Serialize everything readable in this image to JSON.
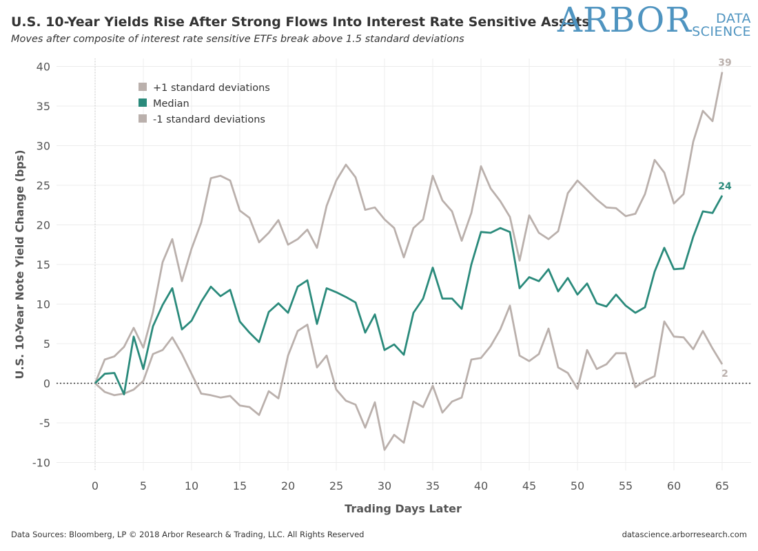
{
  "header": {
    "title": "U.S. 10-Year Yields Rise After Strong Flows Into Interest Rate Sensitive Assets",
    "subtitle": "Moves after composite of interest rate sensitive ETFs break above 1.5 standard deviations"
  },
  "logo": {
    "main": "ARBOR",
    "sub1": "DATA",
    "sub2": "SCIENCE",
    "color": "#4f94c0"
  },
  "footer": {
    "sources": "Data Sources: Bloomberg, LP © 2018 Arbor Research & Trading, LLC. All Rights Reserved",
    "url": "datascience.arborresearch.com"
  },
  "chart_data": {
    "type": "line",
    "xlabel": "Trading Days Later",
    "ylabel": "U.S. 10-Year Note Yield Change (bps)",
    "xlim": [
      -4,
      68
    ],
    "ylim": [
      -11,
      41
    ],
    "x_ticks": [
      0,
      5,
      10,
      15,
      20,
      25,
      30,
      35,
      40,
      45,
      50,
      55,
      60,
      65
    ],
    "y_ticks": [
      -10,
      -5,
      0,
      5,
      10,
      15,
      20,
      25,
      30,
      35,
      40
    ],
    "grid": true,
    "legend_position": "top-left",
    "reference_line": {
      "y": 0,
      "style": "dotted"
    },
    "x": [
      0,
      1,
      2,
      3,
      4,
      5,
      6,
      7,
      8,
      9,
      10,
      11,
      12,
      13,
      14,
      15,
      16,
      17,
      18,
      19,
      20,
      21,
      22,
      23,
      24,
      25,
      26,
      27,
      28,
      29,
      30,
      31,
      32,
      33,
      34,
      35,
      36,
      37,
      38,
      39,
      40,
      41,
      42,
      43,
      44,
      45,
      46,
      47,
      48,
      49,
      50,
      51,
      52,
      53,
      54,
      55,
      56,
      57,
      58,
      59,
      60,
      61,
      62,
      63,
      64,
      65
    ],
    "series": [
      {
        "name": "+1 standard deviations",
        "color": "#bab0ac",
        "end_label": "39",
        "values": [
          0,
          3.0,
          3.4,
          4.6,
          7.0,
          4.5,
          9.0,
          15.3,
          18.2,
          12.9,
          17.0,
          20.3,
          25.9,
          26.2,
          25.6,
          21.8,
          20.9,
          17.8,
          19.0,
          20.6,
          17.5,
          18.2,
          19.4,
          17.1,
          22.4,
          25.6,
          27.6,
          26.0,
          21.9,
          22.2,
          20.7,
          19.6,
          15.9,
          19.6,
          20.7,
          26.2,
          23.1,
          21.7,
          18.0,
          21.5,
          27.4,
          24.6,
          23.0,
          21.0,
          15.5,
          21.2,
          19.0,
          18.2,
          19.2,
          24.0,
          25.6,
          24.4,
          23.2,
          22.2,
          22.1,
          21.1,
          21.4,
          23.9,
          28.2,
          26.6,
          22.7,
          23.9,
          30.5,
          34.4,
          33.1,
          39.3
        ]
      },
      {
        "name": "Median",
        "color": "#2a8a7b",
        "end_label": "24",
        "values": [
          0,
          1.2,
          1.3,
          -1.4,
          5.9,
          1.8,
          7.2,
          9.9,
          12.0,
          6.8,
          7.9,
          10.3,
          12.2,
          11.0,
          11.8,
          7.8,
          6.4,
          5.2,
          9.0,
          10.1,
          8.9,
          12.2,
          13.0,
          7.5,
          12.0,
          11.5,
          10.9,
          10.2,
          6.4,
          8.7,
          4.2,
          4.9,
          3.6,
          8.9,
          10.7,
          14.6,
          10.7,
          10.7,
          9.4,
          15.0,
          19.1,
          19.0,
          19.6,
          19.1,
          12.0,
          13.4,
          12.9,
          14.4,
          11.6,
          13.3,
          11.2,
          12.6,
          10.1,
          9.7,
          11.2,
          9.8,
          8.9,
          9.6,
          14.1,
          17.1,
          14.4,
          14.5,
          18.5,
          21.7,
          21.5,
          23.7
        ]
      },
      {
        "name": "-1 standard deviations",
        "color": "#bab0ac",
        "end_label": "2",
        "values": [
          0,
          -1.1,
          -1.5,
          -1.3,
          -0.8,
          0.3,
          3.7,
          4.2,
          5.8,
          3.7,
          1.2,
          -1.3,
          -1.5,
          -1.8,
          -1.6,
          -2.8,
          -3.0,
          -4.0,
          -1.0,
          -1.9,
          3.5,
          6.6,
          7.4,
          2.0,
          3.5,
          -0.8,
          -2.2,
          -2.7,
          -5.6,
          -2.4,
          -8.4,
          -6.5,
          -7.5,
          -2.3,
          -3.0,
          -0.3,
          -3.7,
          -2.3,
          -1.8,
          3.0,
          3.2,
          4.7,
          6.8,
          9.8,
          3.5,
          2.8,
          3.7,
          6.9,
          2.0,
          1.3,
          -0.7,
          4.2,
          1.8,
          2.4,
          3.8,
          3.8,
          -0.5,
          0.3,
          0.9,
          7.8,
          5.9,
          5.8,
          4.3,
          6.6,
          4.4,
          2.4
        ]
      }
    ]
  }
}
